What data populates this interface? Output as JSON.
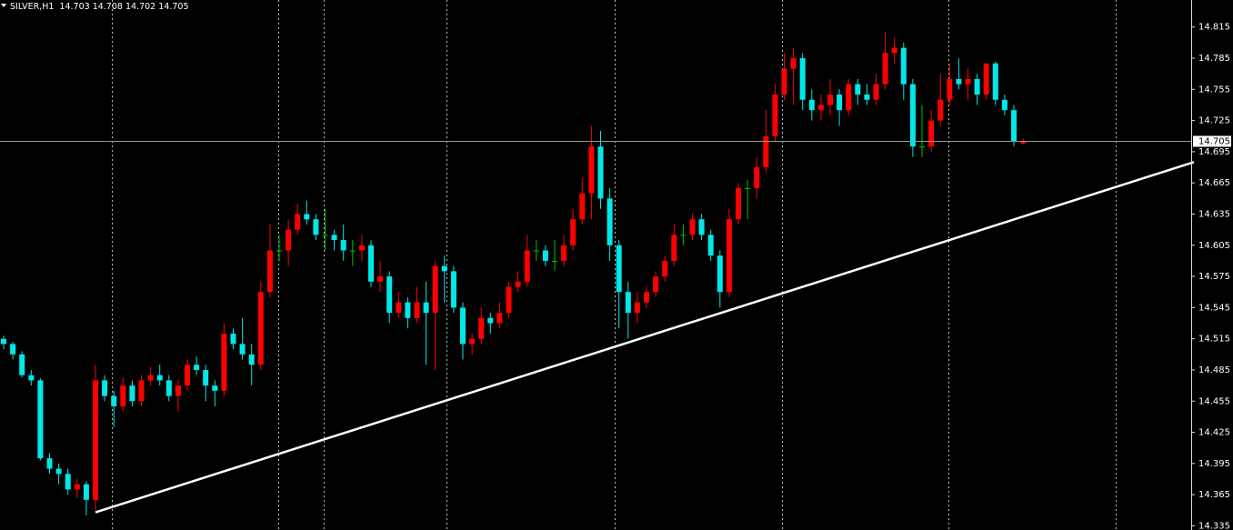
{
  "chart_data": {
    "type": "candlestick",
    "symbol": "SILVER,H1",
    "up_color": "#ff0000",
    "down_color": "#00e8e8",
    "price_line_color": "#8c9a8c",
    "trendline_color": "#ffffff",
    "ylim": [
      14.331,
      14.841
    ],
    "yticks": [
      14.815,
      14.785,
      14.755,
      14.725,
      14.695,
      14.665,
      14.635,
      14.605,
      14.575,
      14.545,
      14.515,
      14.485,
      14.455,
      14.425,
      14.395,
      14.365,
      14.335
    ],
    "trendline": {
      "x": [
        10,
        129.6
      ],
      "y": [
        14.348,
        14.685
      ]
    },
    "candles": [
      [
        14.515,
        14.518,
        14.505,
        14.51
      ],
      [
        14.51,
        14.512,
        14.495,
        14.5
      ],
      [
        14.5,
        14.503,
        14.478,
        14.48
      ],
      [
        14.48,
        14.485,
        14.47,
        14.475
      ],
      [
        14.475,
        14.477,
        14.398,
        14.4
      ],
      [
        14.4,
        14.405,
        14.385,
        14.39
      ],
      [
        14.39,
        14.395,
        14.375,
        14.385
      ],
      [
        14.385,
        14.39,
        14.365,
        14.37
      ],
      [
        14.37,
        14.38,
        14.362,
        14.375
      ],
      [
        14.375,
        14.378,
        14.345,
        14.36
      ],
      [
        14.36,
        14.49,
        14.35,
        14.475
      ],
      [
        14.475,
        14.48,
        14.455,
        14.46
      ],
      [
        14.46,
        14.465,
        14.43,
        14.45
      ],
      [
        14.45,
        14.478,
        14.445,
        14.47
      ],
      [
        14.47,
        14.475,
        14.45,
        14.455
      ],
      [
        14.455,
        14.48,
        14.45,
        14.475
      ],
      [
        14.475,
        14.488,
        14.47,
        14.48
      ],
      [
        14.48,
        14.49,
        14.47,
        14.475
      ],
      [
        14.475,
        14.48,
        14.455,
        14.46
      ],
      [
        14.46,
        14.475,
        14.445,
        14.47
      ],
      [
        14.47,
        14.495,
        14.465,
        14.49
      ],
      [
        14.49,
        14.498,
        14.48,
        14.485
      ],
      [
        14.485,
        14.49,
        14.455,
        14.47
      ],
      [
        14.47,
        14.475,
        14.45,
        14.465
      ],
      [
        14.465,
        14.53,
        14.46,
        14.52
      ],
      [
        14.52,
        14.525,
        14.505,
        14.51
      ],
      [
        14.51,
        14.535,
        14.495,
        14.5
      ],
      [
        14.5,
        14.51,
        14.47,
        14.49
      ],
      [
        14.49,
        14.57,
        14.485,
        14.56
      ],
      [
        14.56,
        14.625,
        14.555,
        14.6
      ],
      [
        14.6,
        14.615,
        14.59,
        14.6
      ],
      [
        14.6,
        14.63,
        14.585,
        14.62
      ],
      [
        14.62,
        14.645,
        14.615,
        14.635
      ],
      [
        14.635,
        14.648,
        14.625,
        14.63
      ],
      [
        14.63,
        14.635,
        14.61,
        14.615
      ],
      [
        14.615,
        14.64,
        14.6,
        14.615
      ],
      [
        14.615,
        14.62,
        14.6,
        14.61
      ],
      [
        14.61,
        14.625,
        14.59,
        14.6
      ],
      [
        14.6,
        14.61,
        14.585,
        14.6
      ],
      [
        14.6,
        14.615,
        14.59,
        14.605
      ],
      [
        14.605,
        14.61,
        14.565,
        14.57
      ],
      [
        14.57,
        14.59,
        14.56,
        14.575
      ],
      [
        14.575,
        14.58,
        14.53,
        14.54
      ],
      [
        14.54,
        14.56,
        14.535,
        14.55
      ],
      [
        14.55,
        14.555,
        14.525,
        14.535
      ],
      [
        14.535,
        14.565,
        14.53,
        14.55
      ],
      [
        14.55,
        14.57,
        14.49,
        14.54
      ],
      [
        14.54,
        14.59,
        14.485,
        14.585
      ],
      [
        14.585,
        14.595,
        14.55,
        14.58
      ],
      [
        14.58,
        14.585,
        14.54,
        14.545
      ],
      [
        14.545,
        14.55,
        14.495,
        14.51
      ],
      [
        14.51,
        14.52,
        14.5,
        14.515
      ],
      [
        14.515,
        14.545,
        14.51,
        14.535
      ],
      [
        14.535,
        14.54,
        14.52,
        14.53
      ],
      [
        14.53,
        14.55,
        14.525,
        14.54
      ],
      [
        14.54,
        14.57,
        14.535,
        14.565
      ],
      [
        14.565,
        14.58,
        14.56,
        14.57
      ],
      [
        14.57,
        14.615,
        14.565,
        14.6
      ],
      [
        14.6,
        14.61,
        14.59,
        14.6
      ],
      [
        14.6,
        14.605,
        14.585,
        14.59
      ],
      [
        14.59,
        14.61,
        14.58,
        14.59
      ],
      [
        14.59,
        14.615,
        14.585,
        14.605
      ],
      [
        14.605,
        14.64,
        14.6,
        14.63
      ],
      [
        14.63,
        14.67,
        14.625,
        14.655
      ],
      [
        14.655,
        14.72,
        14.63,
        14.7
      ],
      [
        14.7,
        14.715,
        14.64,
        14.65
      ],
      [
        14.65,
        14.66,
        14.59,
        14.605
      ],
      [
        14.605,
        14.61,
        14.525,
        14.56
      ],
      [
        14.56,
        14.57,
        14.515,
        14.54
      ],
      [
        14.54,
        14.56,
        14.53,
        14.55
      ],
      [
        14.55,
        14.565,
        14.545,
        14.56
      ],
      [
        14.56,
        14.58,
        14.555,
        14.575
      ],
      [
        14.575,
        14.595,
        14.57,
        14.59
      ],
      [
        14.59,
        14.625,
        14.585,
        14.615
      ],
      [
        14.615,
        14.625,
        14.605,
        14.615
      ],
      [
        14.615,
        14.635,
        14.61,
        14.63
      ],
      [
        14.63,
        14.635,
        14.61,
        14.615
      ],
      [
        14.615,
        14.62,
        14.59,
        14.595
      ],
      [
        14.595,
        14.6,
        14.545,
        14.56
      ],
      [
        14.56,
        14.64,
        14.555,
        14.63
      ],
      [
        14.63,
        14.665,
        14.625,
        14.66
      ],
      [
        14.66,
        14.668,
        14.63,
        14.66
      ],
      [
        14.66,
        14.69,
        14.65,
        14.68
      ],
      [
        14.68,
        14.735,
        14.675,
        14.71
      ],
      [
        14.71,
        14.76,
        14.705,
        14.75
      ],
      [
        14.75,
        14.79,
        14.745,
        14.775
      ],
      [
        14.775,
        14.795,
        14.74,
        14.785
      ],
      [
        14.785,
        14.79,
        14.735,
        14.745
      ],
      [
        14.745,
        14.755,
        14.725,
        14.735
      ],
      [
        14.735,
        14.75,
        14.725,
        14.74
      ],
      [
        14.74,
        14.765,
        14.73,
        14.75
      ],
      [
        14.75,
        14.755,
        14.72,
        14.735
      ],
      [
        14.735,
        14.765,
        14.73,
        14.76
      ],
      [
        14.76,
        14.765,
        14.74,
        14.75
      ],
      [
        14.75,
        14.76,
        14.74,
        14.745
      ],
      [
        14.745,
        14.77,
        14.74,
        14.76
      ],
      [
        14.76,
        14.81,
        14.755,
        14.79
      ],
      [
        14.79,
        14.805,
        14.78,
        14.795
      ],
      [
        14.795,
        14.8,
        14.745,
        14.76
      ],
      [
        14.76,
        14.765,
        14.69,
        14.7
      ],
      [
        14.7,
        14.74,
        14.69,
        14.7
      ],
      [
        14.7,
        14.735,
        14.695,
        14.725
      ],
      [
        14.725,
        14.77,
        14.72,
        14.745
      ],
      [
        14.745,
        14.78,
        14.74,
        14.765
      ],
      [
        14.765,
        14.785,
        14.755,
        14.76
      ],
      [
        14.76,
        14.775,
        14.745,
        14.765
      ],
      [
        14.765,
        14.77,
        14.74,
        14.75
      ],
      [
        14.75,
        14.78,
        14.745,
        14.78
      ],
      [
        14.78,
        14.782,
        14.74,
        14.745
      ],
      [
        14.745,
        14.75,
        14.73,
        14.735
      ],
      [
        14.735,
        14.74,
        14.7,
        14.705
      ],
      [
        14.703,
        14.708,
        14.702,
        14.705
      ]
    ]
  }
}
